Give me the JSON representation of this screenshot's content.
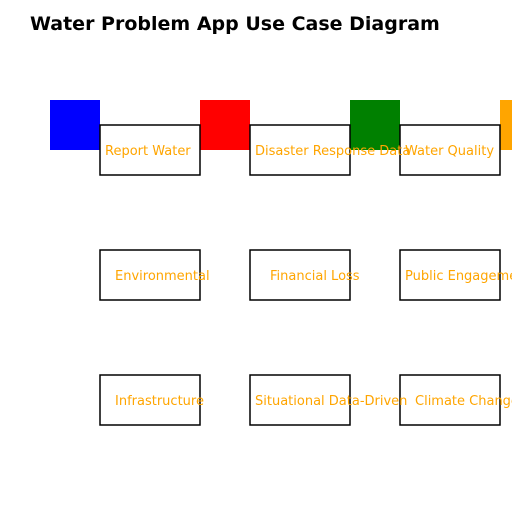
{
  "title": "Water Problem App Use Case Diagram",
  "colors": {
    "label": "#FFA500",
    "box_stroke": "#000000"
  },
  "actors": [
    {
      "color": "#0000FF"
    },
    {
      "color": "#FF0000"
    },
    {
      "color": "#008000"
    },
    {
      "color": "#FFA500"
    }
  ],
  "use_cases": [
    [
      "Report Water",
      "Disaster Response Data",
      "Water Quality"
    ],
    [
      "Environmental",
      "Financial Loss",
      "Public Engagement"
    ],
    [
      "Infrastructure",
      "Situational Data-Driven",
      "Climate Change"
    ]
  ]
}
